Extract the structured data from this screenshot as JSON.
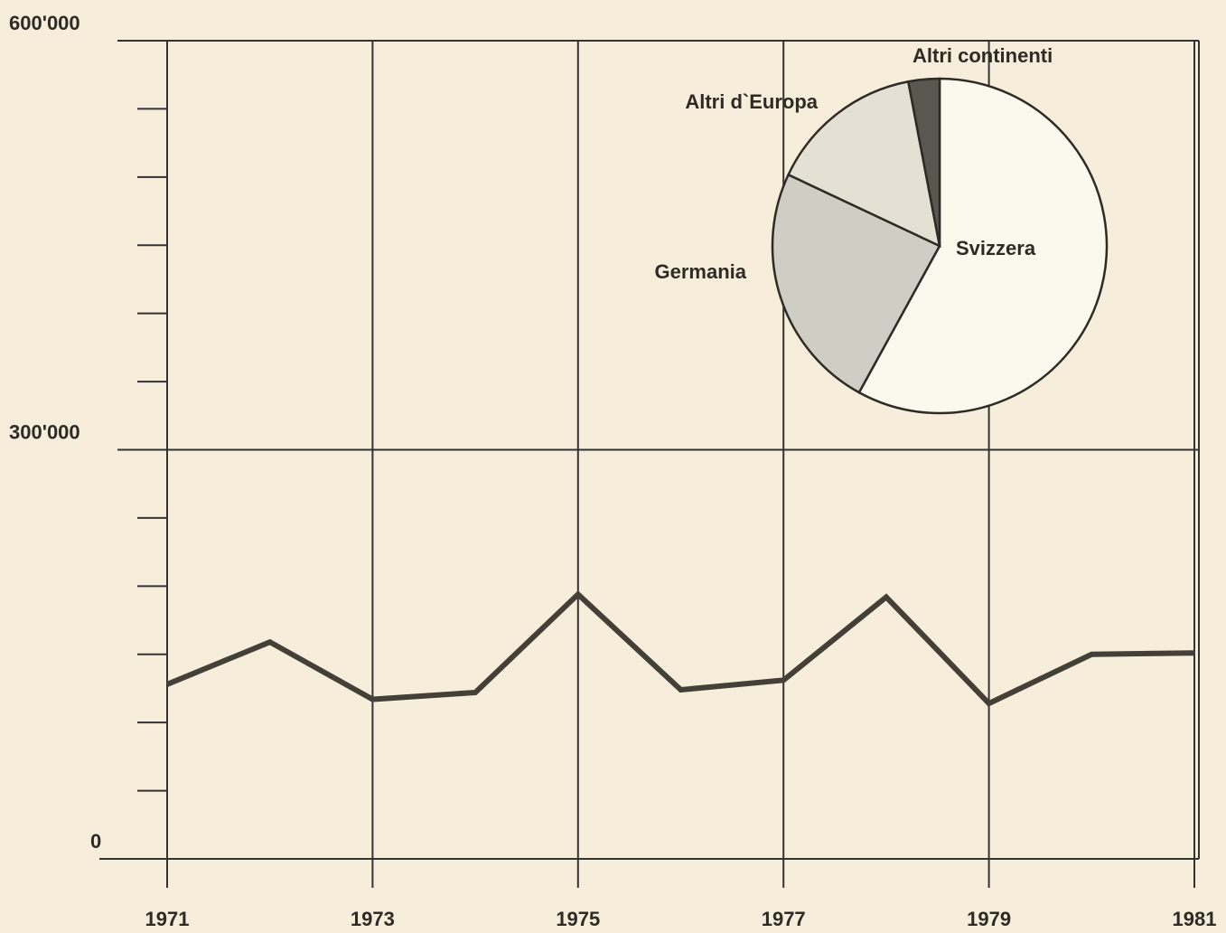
{
  "chart_data": [
    {
      "type": "line",
      "x": [
        1971,
        1972,
        1973,
        1974,
        1975,
        1976,
        1977,
        1978,
        1979,
        1980,
        1981
      ],
      "series": [
        {
          "color": "#444038",
          "values": [
            128000,
            159000,
            117000,
            122000,
            194000,
            124000,
            131000,
            192000,
            114000,
            150000,
            151000
          ]
        }
      ],
      "xlim": [
        1971,
        1981
      ],
      "xticks": [
        1971,
        1973,
        1975,
        1977,
        1979,
        1981
      ],
      "ylim": [
        0,
        600000
      ],
      "yticks": [
        0,
        {
          "value": 300000,
          "label": "300'000"
        },
        {
          "value": 600000,
          "label": "600'000"
        }
      ],
      "yminorticks": [
        50000,
        100000,
        150000,
        200000,
        250000,
        350000,
        400000,
        450000,
        500000,
        550000
      ],
      "grid": true
    },
    {
      "type": "pie",
      "categories": [
        "Svizzera",
        "Germania",
        "Altri d`Europa",
        "Altri continenti"
      ],
      "values": [
        58,
        24,
        15,
        3
      ],
      "colors": [
        "#fbf8ee",
        "#cfcdc4",
        "#e4e1d4",
        "#5a5650"
      ]
    }
  ]
}
